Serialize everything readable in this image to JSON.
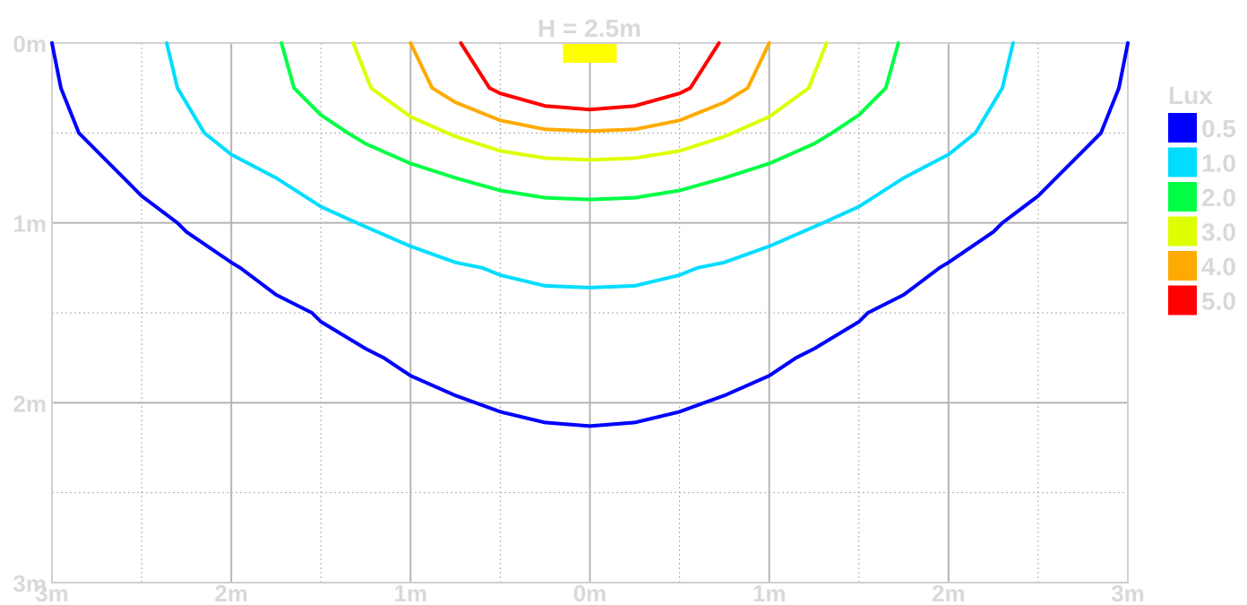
{
  "chart_data": {
    "type": "line",
    "title": "H = 2.5m",
    "legend": {
      "title": "Lux",
      "placement": "right",
      "entries": [
        {
          "label": "0.5",
          "color": "#0000ff"
        },
        {
          "label": "1.0",
          "color": "#00ddff"
        },
        {
          "label": "2.0",
          "color": "#00ff44"
        },
        {
          "label": "3.0",
          "color": "#ddff00"
        },
        {
          "label": "4.0",
          "color": "#ffaa00"
        },
        {
          "label": "5.0",
          "color": "#ff0000"
        }
      ]
    },
    "x_ticks": [
      "3m",
      "2m",
      "1m",
      "0m",
      "1m",
      "2m",
      "3m"
    ],
    "y_ticks": [
      "0m",
      "1m",
      "2m",
      "3m"
    ],
    "xlim": [
      -3,
      3
    ],
    "ylim": [
      0,
      3
    ],
    "y_inverted": true,
    "grid": {
      "major": true,
      "minor_dotted": true
    },
    "luminaire": {
      "x": [
        -0.15,
        0.15
      ],
      "y": [
        0.0,
        0.1
      ],
      "color": "#ffff00"
    },
    "series": [
      {
        "name": "0.5",
        "color": "#0000ff",
        "x": [
          -3.0,
          -2.95,
          -2.85,
          -2.75,
          -2.6,
          -2.5,
          -2.3,
          -2.25,
          -2.0,
          -1.95,
          -1.75,
          -1.55,
          -1.5,
          -1.25,
          -1.15,
          -1.0,
          -0.75,
          -0.5,
          -0.25,
          0.0,
          0.25,
          0.5,
          0.75,
          1.0,
          1.15,
          1.25,
          1.5,
          1.55,
          1.75,
          1.95,
          2.0,
          2.25,
          2.3,
          2.5,
          2.6,
          2.75,
          2.85,
          2.95,
          3.0
        ],
        "y": [
          0.0,
          0.25,
          0.5,
          0.6,
          0.75,
          0.85,
          1.0,
          1.05,
          1.22,
          1.25,
          1.4,
          1.5,
          1.55,
          1.7,
          1.75,
          1.85,
          1.96,
          2.05,
          2.11,
          2.13,
          2.11,
          2.05,
          1.96,
          1.85,
          1.75,
          1.7,
          1.55,
          1.5,
          1.4,
          1.25,
          1.22,
          1.05,
          1.0,
          0.85,
          0.75,
          0.6,
          0.5,
          0.25,
          0.0
        ]
      },
      {
        "name": "1.0",
        "color": "#00ddff",
        "x": [
          -2.36,
          -2.3,
          -2.15,
          -2.0,
          -1.75,
          -1.5,
          -1.3,
          -1.0,
          -0.75,
          -0.6,
          -0.5,
          -0.25,
          0.0,
          0.25,
          0.5,
          0.6,
          0.75,
          1.0,
          1.3,
          1.5,
          1.75,
          2.0,
          2.15,
          2.3,
          2.36
        ],
        "y": [
          0.0,
          0.25,
          0.5,
          0.62,
          0.75,
          0.91,
          1.0,
          1.13,
          1.22,
          1.25,
          1.29,
          1.35,
          1.36,
          1.35,
          1.29,
          1.25,
          1.22,
          1.13,
          1.0,
          0.91,
          0.75,
          0.62,
          0.5,
          0.25,
          0.0
        ]
      },
      {
        "name": "2.0",
        "color": "#00ff44",
        "x": [
          -1.72,
          -1.65,
          -1.5,
          -1.35,
          -1.25,
          -1.0,
          -0.75,
          -0.5,
          -0.25,
          0.0,
          0.25,
          0.5,
          0.75,
          1.0,
          1.25,
          1.35,
          1.5,
          1.65,
          1.72
        ],
        "y": [
          0.0,
          0.25,
          0.4,
          0.5,
          0.56,
          0.67,
          0.75,
          0.82,
          0.86,
          0.87,
          0.86,
          0.82,
          0.75,
          0.67,
          0.56,
          0.5,
          0.4,
          0.25,
          0.0
        ],
        "_y_note": ""
      },
      {
        "name": "3.0",
        "color": "#ddff00",
        "x": [
          -1.32,
          -1.22,
          -1.0,
          -0.75,
          -0.5,
          -0.25,
          0.0,
          0.25,
          0.5,
          0.75,
          1.0,
          1.22,
          1.32
        ],
        "y": [
          0.0,
          0.25,
          0.41,
          0.52,
          0.6,
          0.64,
          0.65,
          0.64,
          0.6,
          0.52,
          0.41,
          0.25,
          0.0
        ]
      },
      {
        "name": "4.0",
        "color": "#ffaa00",
        "x": [
          -1.0,
          -0.88,
          -0.75,
          -0.5,
          -0.25,
          0.0,
          0.25,
          0.5,
          0.75,
          0.88,
          1.0
        ],
        "y": [
          0.0,
          0.25,
          0.33,
          0.43,
          0.48,
          0.49,
          0.48,
          0.43,
          0.33,
          0.25,
          0.0
        ]
      },
      {
        "name": "5.0",
        "color": "#ff0000",
        "x": [
          -0.72,
          -0.56,
          -0.5,
          -0.25,
          0.0,
          0.25,
          0.5,
          0.56,
          0.72
        ],
        "y": [
          0.0,
          0.25,
          0.28,
          0.35,
          0.37,
          0.35,
          0.28,
          0.25,
          0.0
        ]
      }
    ]
  }
}
